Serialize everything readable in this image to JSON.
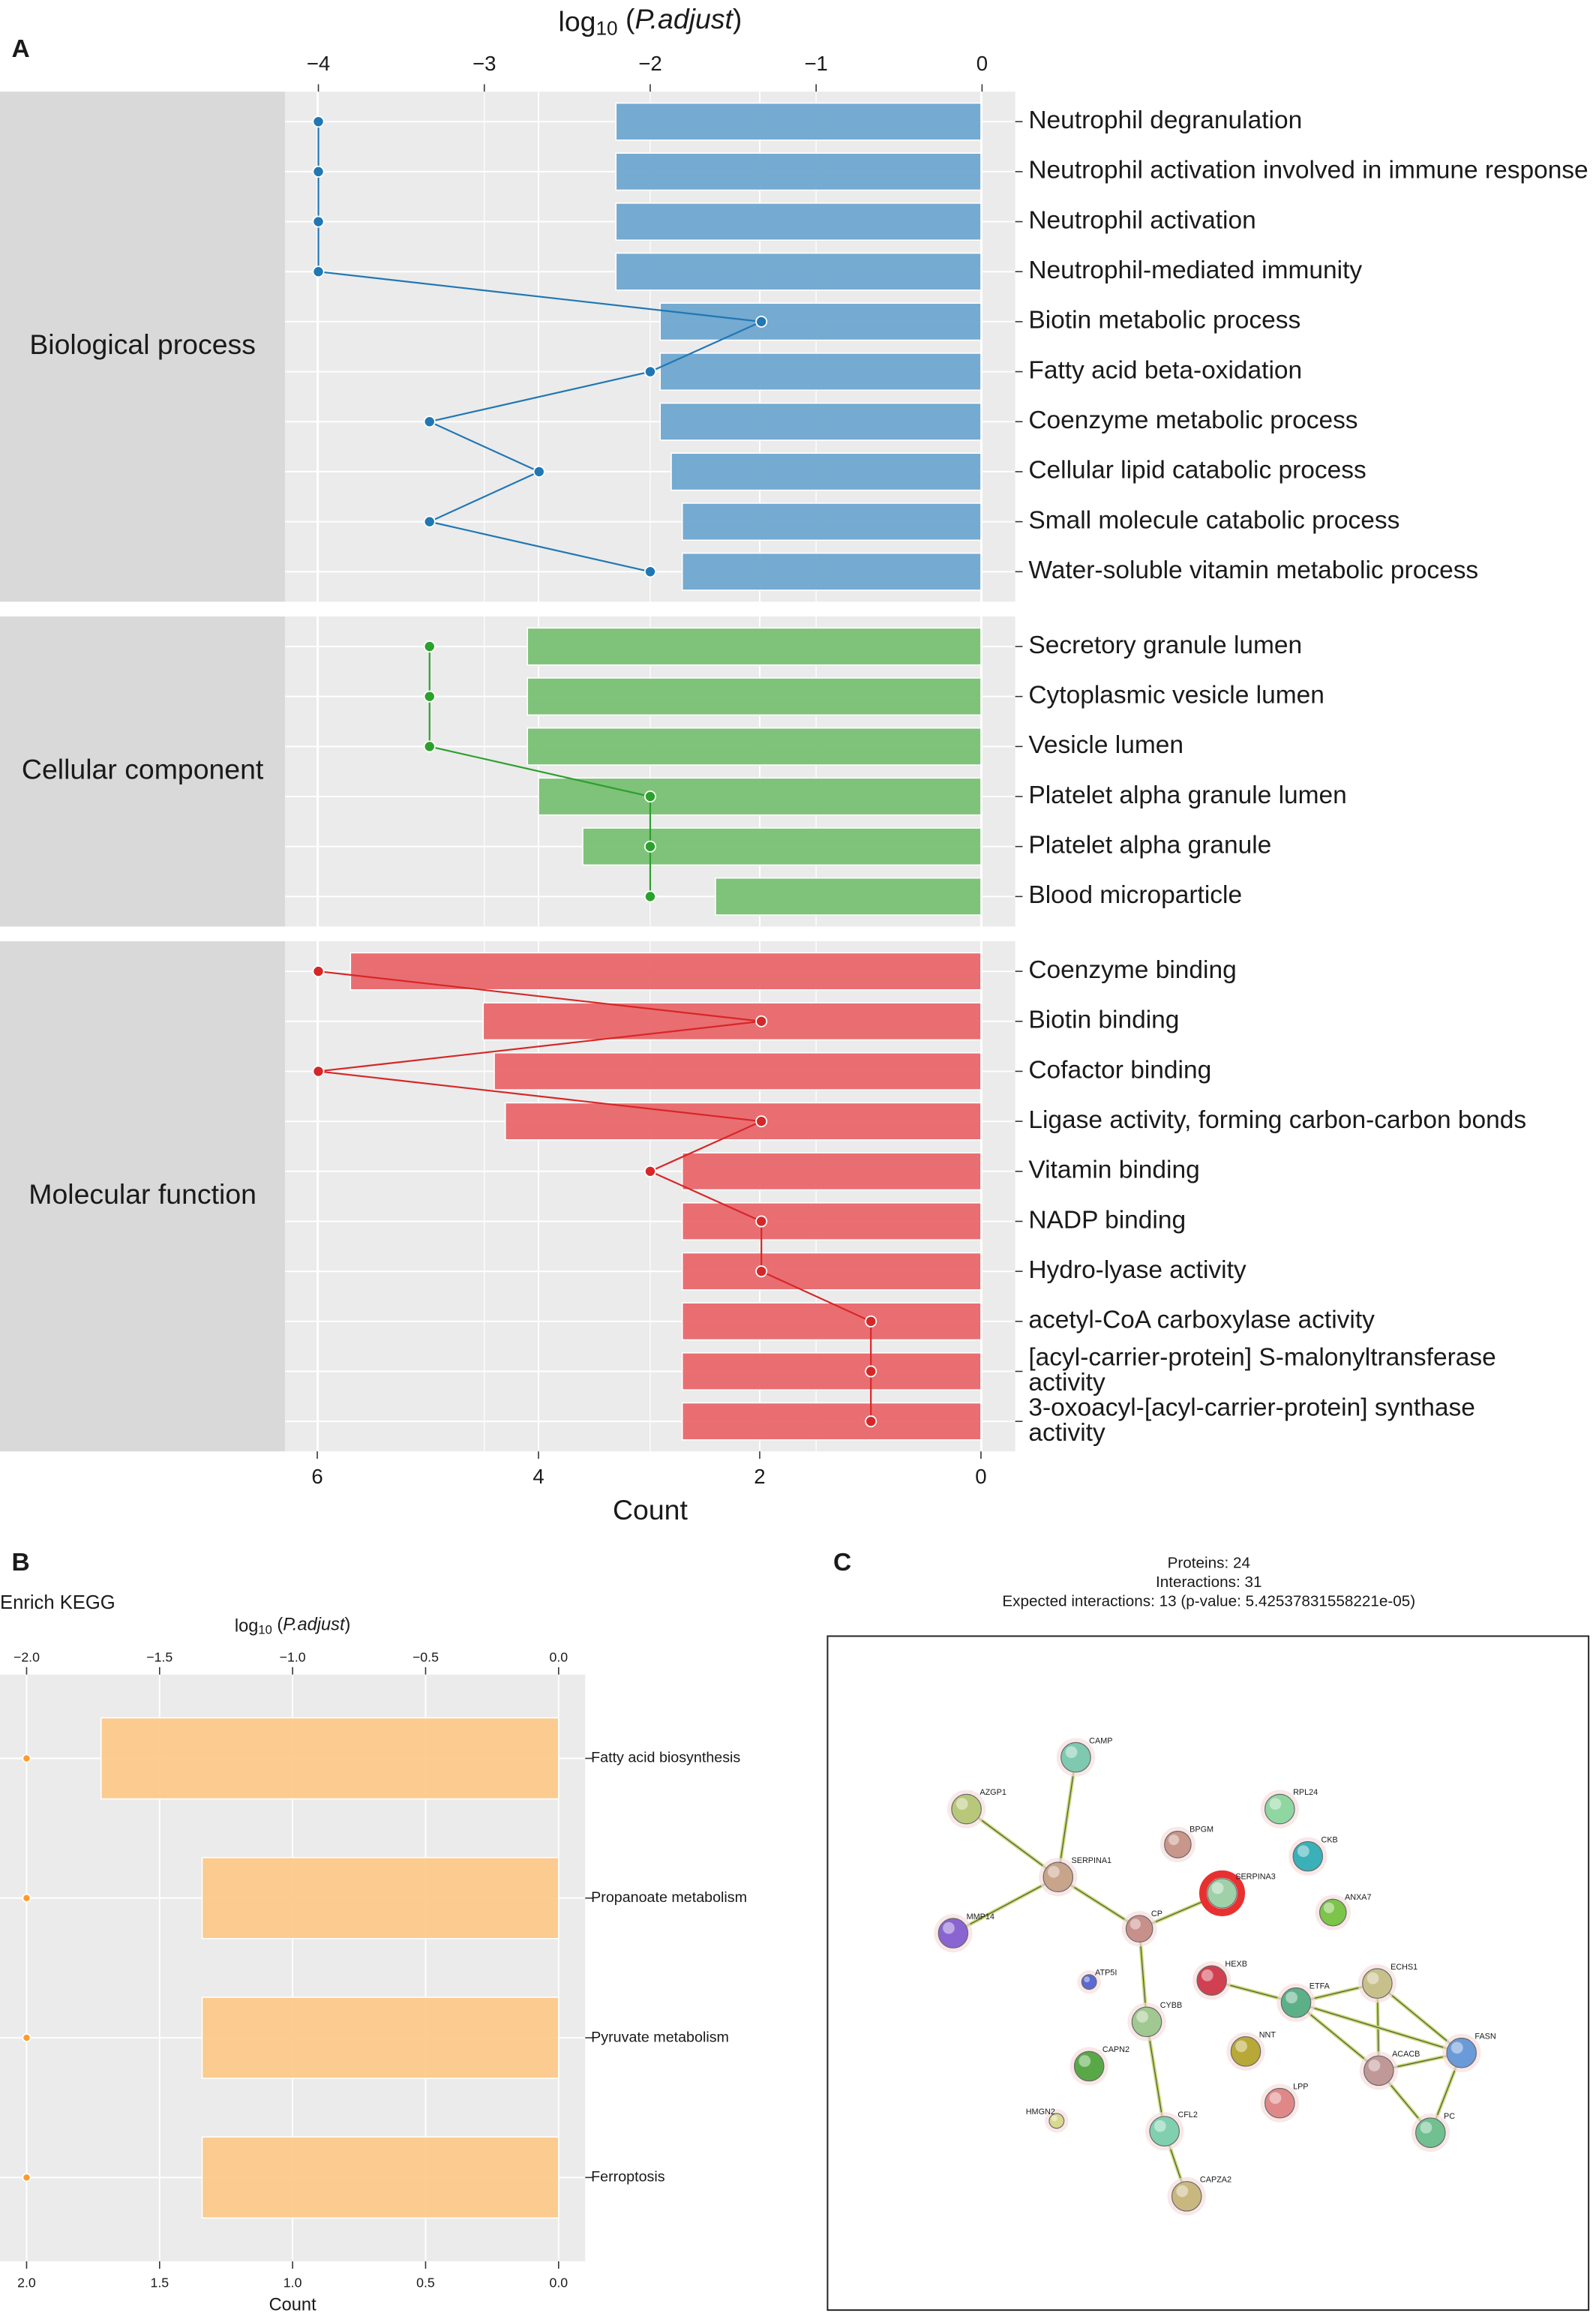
{
  "chart_data": [
    {
      "type": "bar",
      "panel_label": "A",
      "x_label": "Count",
      "x2_label": "log10 (P.adjust)",
      "xlim": [
        6.29,
        -0.31
      ],
      "xticks": [
        6,
        4,
        2,
        0
      ],
      "x2lim": [
        -4.2,
        0.2
      ],
      "x2ticks": [
        {
          "value": -4,
          "label": "−4"
        },
        {
          "value": -3,
          "label": "−3"
        },
        {
          "value": -2,
          "label": "−2"
        },
        {
          "value": -1,
          "label": "−1"
        },
        0
      ],
      "grid": true,
      "connect_points": true,
      "facets": [
        {
          "name": "Biological process",
          "bar_color": "#6fa6d0",
          "line_color": "#2077b4",
          "categories": [
            "Neutrophil degranulation",
            "Neutrophil activation involved in immune response",
            "Neutrophil activation",
            "Neutrophil-mediated immunity",
            "Biotin metabolic process",
            "Fatty acid beta-oxidation",
            "Coenzyme metabolic process",
            "Cellular lipid catabolic process",
            "Small molecule catabolic process",
            "Water-soluble vitamin metabolic process"
          ],
          "values": [
            3.3,
            3.3,
            3.3,
            3.3,
            2.9,
            2.9,
            2.9,
            2.8,
            2.7,
            2.7
          ],
          "line_values": [
            -4,
            -4,
            -4,
            -4,
            -1.33,
            -2,
            -3.33,
            -2.67,
            -3.33,
            -2
          ]
        },
        {
          "name": "Cellular component",
          "bar_color": "#79c074",
          "line_color": "#2ca02c",
          "categories": [
            "Secretory granule lumen",
            "Cytoplasmic vesicle lumen",
            "Vesicle lumen",
            "Platelet alpha granule lumen",
            "Platelet alpha granule",
            "Blood microparticle"
          ],
          "values": [
            4.1,
            4.1,
            4.1,
            4.0,
            3.6,
            2.4
          ],
          "line_values": [
            -3.33,
            -3.33,
            -3.33,
            -2,
            -2,
            -2
          ]
        },
        {
          "name": "Molecular function",
          "bar_color": "#e9676c",
          "line_color": "#d62728",
          "categories": [
            "Coenzyme binding",
            "Biotin binding",
            "Cofactor binding",
            "Ligase activity, forming carbon-carbon bonds",
            "Vitamin binding",
            "NADP binding",
            "Hydro-lyase activity",
            "acetyl-CoA carboxylase activity",
            "[acyl-carrier-protein] S-malonyltransferase activity",
            "3-oxoacyl-[acyl-carrier-protein] synthase activity"
          ],
          "values": [
            5.7,
            4.5,
            4.4,
            4.3,
            2.7,
            2.7,
            2.7,
            2.7,
            2.7,
            2.7
          ],
          "line_values": [
            -4,
            -1.33,
            -4,
            -1.33,
            -2,
            -1.33,
            -1.33,
            -0.67,
            -0.67,
            -0.67
          ]
        }
      ]
    },
    {
      "type": "bar",
      "panel_label": "B",
      "title": "Enrich KEGG",
      "x_label": "Count",
      "x2_label": "log10 (P.adjust)",
      "xlim": [
        2.1,
        -0.1
      ],
      "xticks": [
        {
          "value": 2,
          "label": "2.0"
        },
        {
          "value": 1.5,
          "label": "1.5"
        },
        {
          "value": 1,
          "label": "1.0"
        },
        {
          "value": 0.5,
          "label": "0.5"
        },
        {
          "value": 0,
          "label": "0.0"
        }
      ],
      "x2lim": [
        -2.1,
        0.1
      ],
      "x2ticks": [
        {
          "value": -2,
          "label": "−2.0"
        },
        {
          "value": -1.5,
          "label": "−1.5"
        },
        {
          "value": -1,
          "label": "−1.0"
        },
        {
          "value": -0.5,
          "label": "−0.5"
        },
        {
          "value": 0,
          "label": "0.0"
        }
      ],
      "grid": true,
      "connect_points": false,
      "facets": [
        {
          "bar_color": "#fcc98b",
          "line_color": "#ff9b2e",
          "categories": [
            "Fatty acid biosynthesis",
            "Propanoate metabolism",
            "Pyruvate metabolism",
            "Ferroptosis"
          ],
          "values": [
            1.72,
            1.34,
            1.34,
            1.34
          ],
          "line_values": [
            -2,
            -2,
            -2,
            -2
          ]
        }
      ]
    }
  ],
  "network": {
    "panel_label": "C",
    "header": [
      "Proteins: 24",
      "Interactions: 31",
      "Expected interactions: 13 (p-value: 5.42537831558221e-05)"
    ],
    "nodes": [
      {
        "label": "CAMP"
      },
      {
        "label": "AZGP1"
      },
      {
        "label": "RPL24"
      },
      {
        "label": "BPGM"
      },
      {
        "label": "CKB"
      },
      {
        "label": "SERPINA1"
      },
      {
        "label": "SERPINA3"
      },
      {
        "label": "ANXA7"
      },
      {
        "label": "CP"
      },
      {
        "label": "MMP14"
      },
      {
        "label": "ATP5I"
      },
      {
        "label": "HEXB"
      },
      {
        "label": "ECHS1"
      },
      {
        "label": "ETFA"
      },
      {
        "label": "CYBB"
      },
      {
        "label": "NNT"
      },
      {
        "label": "FASN"
      },
      {
        "label": "ACACB"
      },
      {
        "label": "CAPN2"
      },
      {
        "label": "LPP"
      },
      {
        "label": "HMGN2"
      },
      {
        "label": "CFL2"
      },
      {
        "label": "PC"
      },
      {
        "label": "CAPZA2"
      }
    ]
  }
}
